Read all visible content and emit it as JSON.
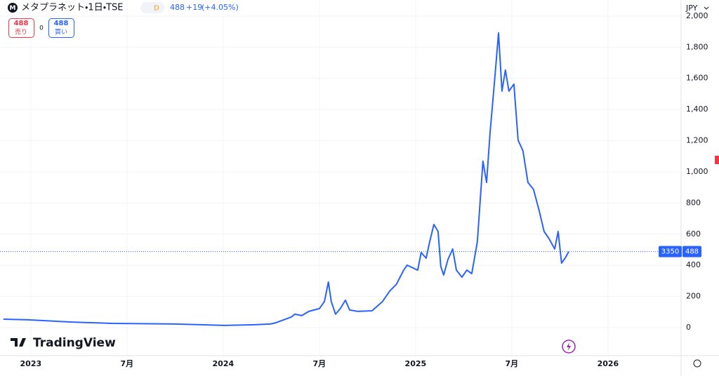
{
  "header": {
    "symbol": "メタプラネット・1日・TSE",
    "interval_badge": "D",
    "price": "488",
    "change": "+19",
    "change_pct": "(+4.05%)",
    "sell_price": "488",
    "sell_label": "売り",
    "spread": "0",
    "buy_price": "488",
    "buy_label": "買い",
    "currency": "JPY",
    "code": "3350",
    "logo": "TradingView"
  },
  "chart_data": {
    "type": "line",
    "color": "#2962ff",
    "x": [
      2022.858,
      2022.985,
      2023.204,
      2023.423,
      2023.752,
      2024.007,
      2024.153,
      2024.245,
      2024.27,
      2024.354,
      2024.372,
      2024.409,
      2024.445,
      2024.5,
      2024.526,
      2024.547,
      2024.562,
      2024.584,
      2024.609,
      2024.635,
      2024.657,
      2024.701,
      2024.774,
      2024.828,
      2024.865,
      2024.901,
      2024.938,
      2024.956,
      2025.011,
      2025.029,
      2025.055,
      2025.073,
      2025.095,
      2025.117,
      2025.131,
      2025.146,
      2025.168,
      2025.193,
      2025.212,
      2025.241,
      2025.266,
      2025.292,
      2025.321,
      2025.35,
      2025.369,
      2025.387,
      2025.412,
      2025.431,
      2025.449,
      2025.467,
      2025.485,
      2025.511,
      2025.533,
      2025.558,
      2025.584,
      2025.613,
      2025.642,
      2025.668,
      2025.693,
      2025.723,
      2025.741,
      2025.759,
      2025.777,
      2025.796
    ],
    "values": [
      54,
      50,
      36,
      27,
      23,
      14,
      18,
      23,
      30,
      68,
      86,
      77,
      104,
      122,
      167,
      293,
      167,
      86,
      122,
      176,
      113,
      104,
      108,
      167,
      234,
      279,
      369,
      401,
      369,
      482,
      446,
      550,
      662,
      617,
      392,
      338,
      437,
      505,
      369,
      324,
      369,
      347,
      550,
      1068,
      932,
      1248,
      1608,
      1892,
      1518,
      1653,
      1518,
      1563,
      1203,
      1135,
      932,
      887,
      752,
      617,
      572,
      505,
      617,
      414,
      446,
      488
    ],
    "last_price": 488,
    "xlim": [
      2022.84,
      2026.38
    ],
    "xticks": [
      {
        "value": 2023,
        "label": "2023"
      },
      {
        "value": 2023.5,
        "label": "7月"
      },
      {
        "value": 2024,
        "label": "2024"
      },
      {
        "value": 2024.5,
        "label": "7月"
      },
      {
        "value": 2025,
        "label": "2025"
      },
      {
        "value": 2025.5,
        "label": "7月"
      },
      {
        "value": 2026,
        "label": "2026"
      }
    ],
    "ylim": [
      -180,
      2103
    ],
    "yticks": [
      0,
      200,
      400,
      600,
      800,
      {
        "value": 1000,
        "label": "1,000"
      },
      {
        "value": 1200,
        "label": "1,200"
      },
      {
        "value": 1400,
        "label": "1,400"
      },
      {
        "value": 1600,
        "label": "1,600"
      },
      {
        "value": 1800,
        "label": "1,800"
      },
      {
        "value": 2000,
        "label": "2,000"
      }
    ],
    "grid": true
  }
}
